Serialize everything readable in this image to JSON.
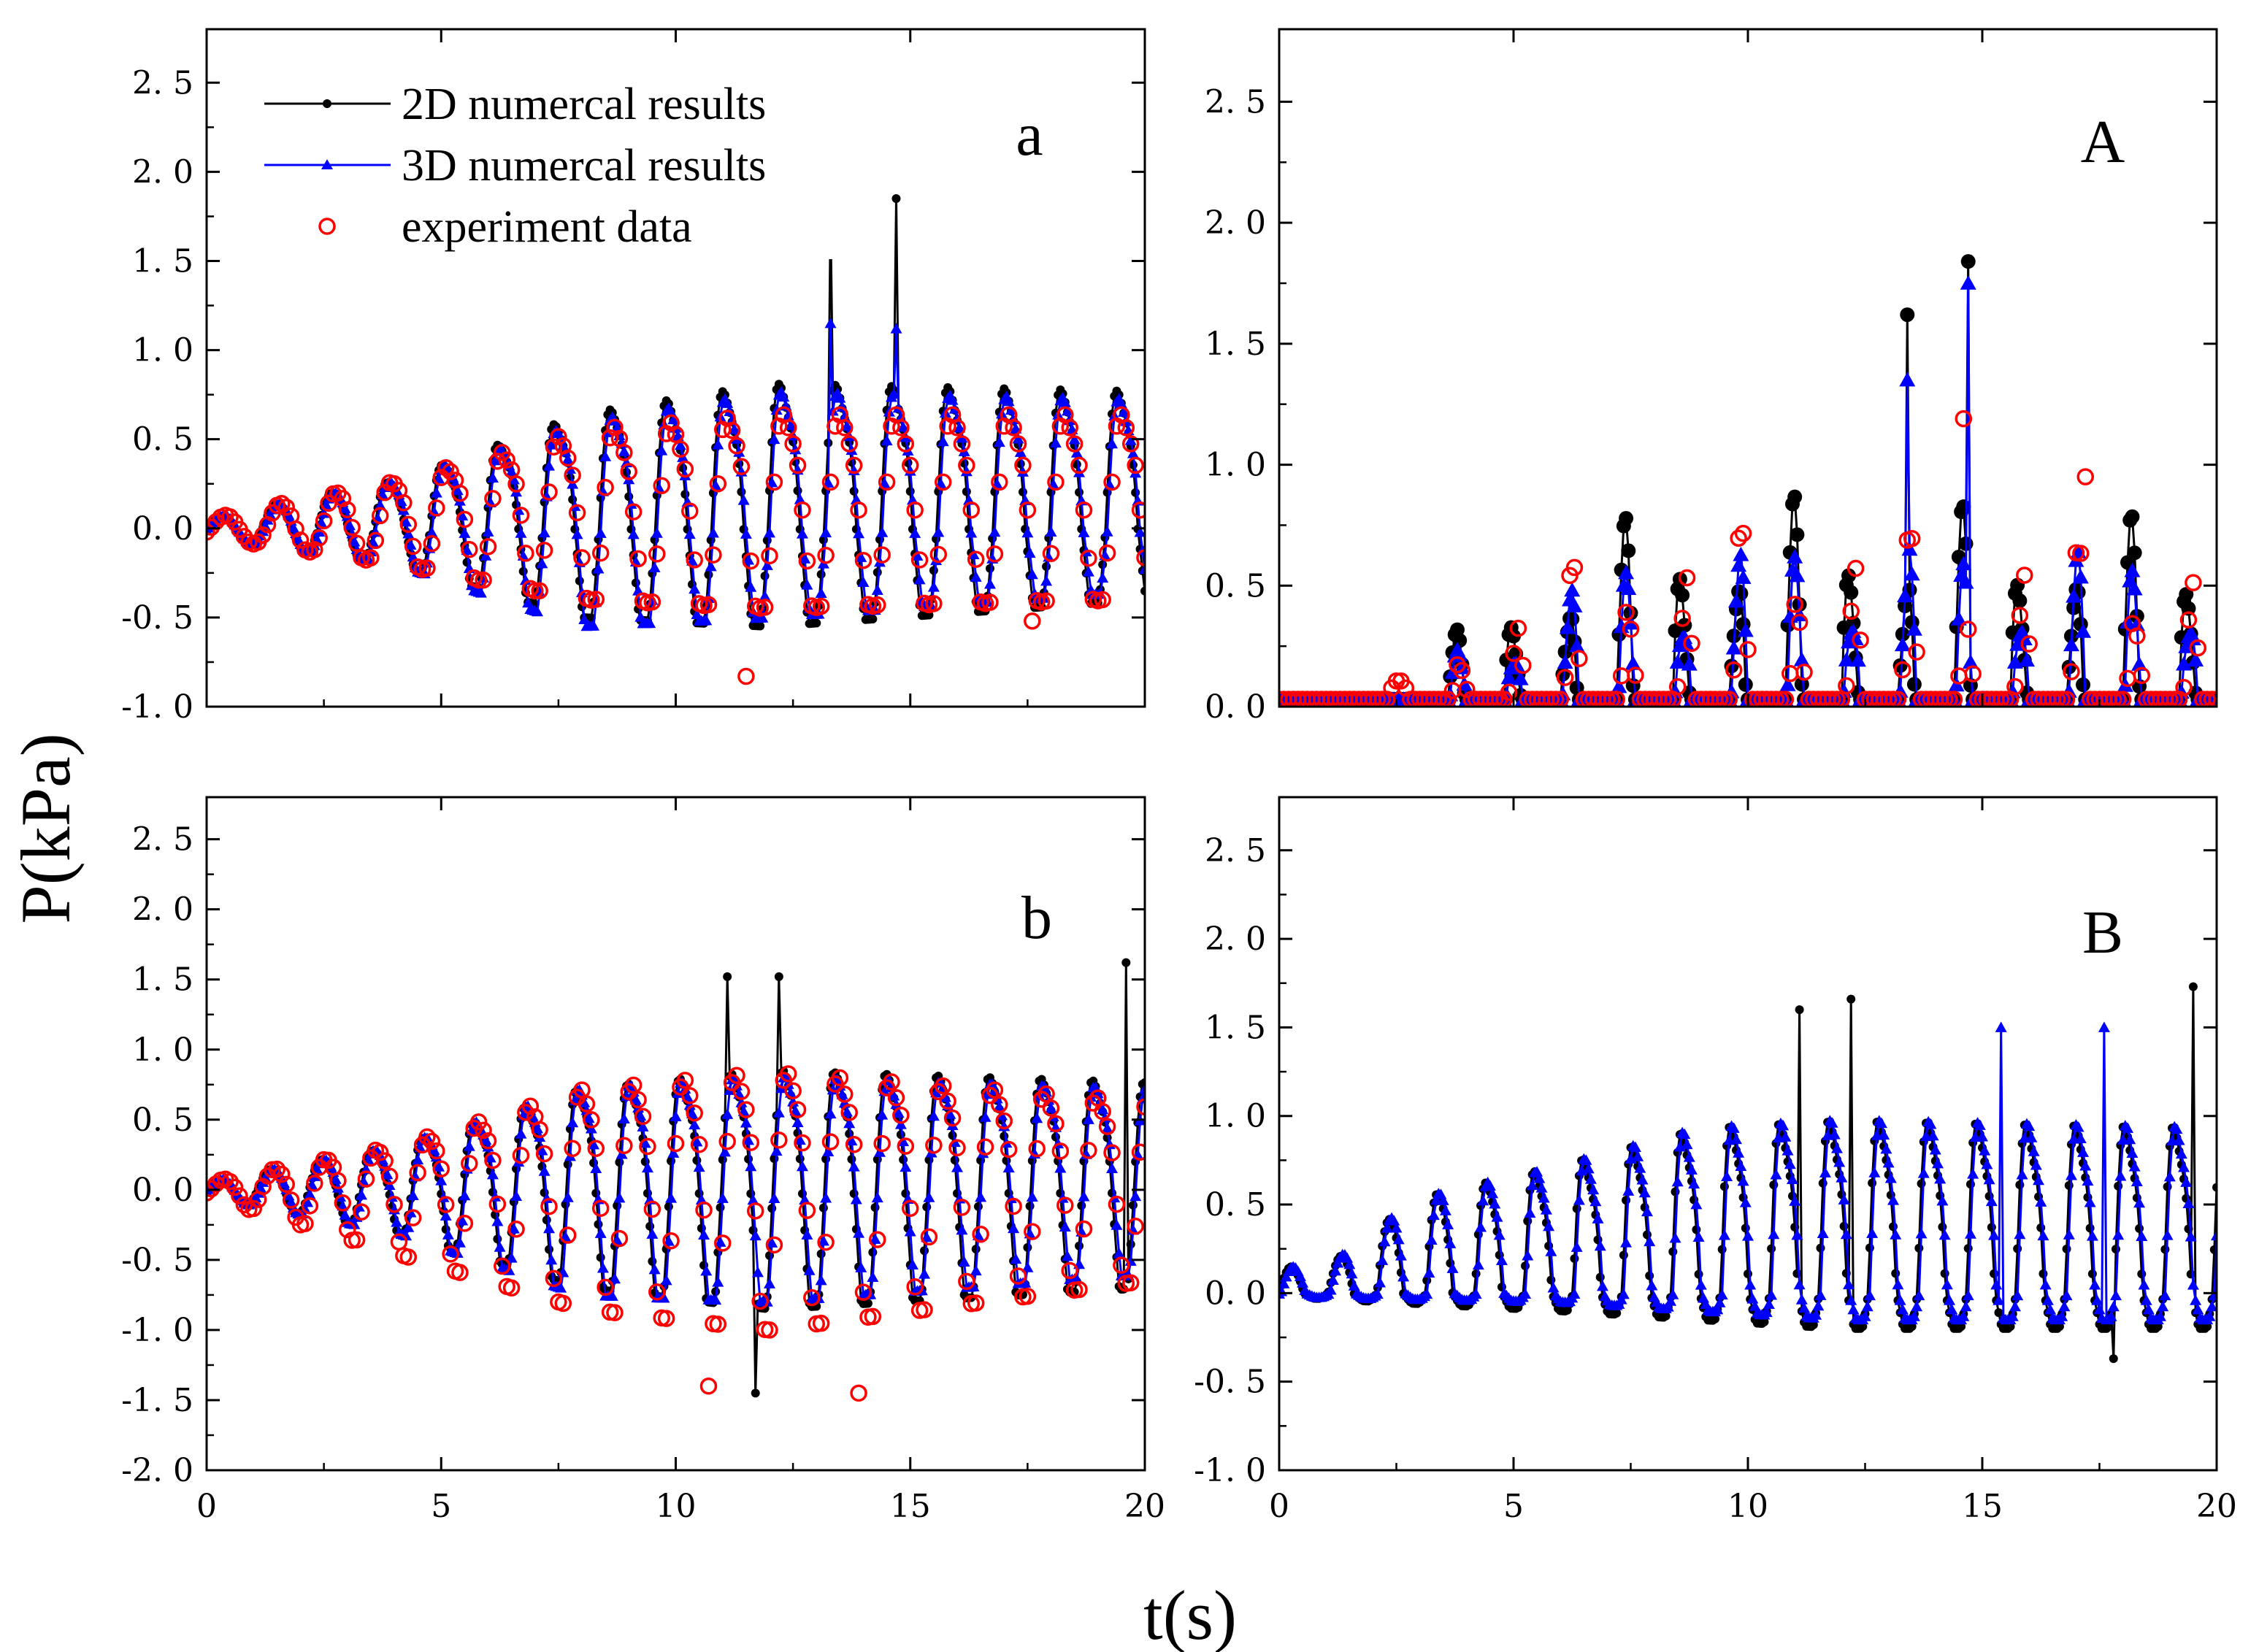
{
  "figure": {
    "ylabel": "P(kPa)",
    "xlabel": "t(s)",
    "colors": {
      "2D": "#000000",
      "3D": "#0000ff",
      "exp": "#ff0000"
    },
    "legend": {
      "placement": "top-left of panel a",
      "entries": [
        {
          "key": "2D",
          "label": "2D numercal results",
          "marker": "filled-circle"
        },
        {
          "key": "3D",
          "label": "3D numercal results",
          "marker": "triangle"
        },
        {
          "key": "exp",
          "label": "experiment data",
          "marker": "open-circle"
        }
      ]
    }
  },
  "chart_data": [
    {
      "id": "a",
      "label": "a",
      "type": "line",
      "xlim": [
        0,
        20
      ],
      "ylim": [
        -1.0,
        2.8
      ],
      "yticks": [
        "-1. 0",
        "-0. 5",
        "0. 0",
        "0. 5",
        "1. 0",
        "1. 5",
        "2. 0",
        "2. 5"
      ],
      "xticks": [],
      "period": 1.2,
      "series": {
        "2D": {
          "amplitude": [
            [
              0,
              0.05
            ],
            [
              4,
              0.3
            ],
            [
              8,
              0.75
            ],
            [
              12,
              0.95
            ],
            [
              20,
              0.9
            ]
          ],
          "trough": [
            [
              0,
              -0.05
            ],
            [
              4,
              -0.2
            ],
            [
              8,
              -0.5
            ],
            [
              12,
              -0.55
            ],
            [
              20,
              -0.4
            ]
          ]
        },
        "3D": {
          "amplitude": [
            [
              0,
              0.05
            ],
            [
              4,
              0.3
            ],
            [
              8,
              0.7
            ],
            [
              12,
              0.9
            ],
            [
              20,
              0.85
            ]
          ],
          "trough": [
            [
              0,
              -0.05
            ],
            [
              4,
              -0.2
            ],
            [
              8,
              -0.55
            ],
            [
              12,
              -0.5
            ],
            [
              20,
              -0.35
            ]
          ]
        },
        "exp": {
          "amplitude": [
            [
              0,
              0.05
            ],
            [
              4,
              0.3
            ],
            [
              8,
              0.65
            ],
            [
              12,
              0.75
            ],
            [
              20,
              0.75
            ]
          ],
          "trough": [
            [
              0,
              -0.05
            ],
            [
              4,
              -0.2
            ],
            [
              8,
              -0.4
            ],
            [
              12,
              -0.45
            ],
            [
              20,
              -0.4
            ]
          ]
        }
      },
      "spikes": [
        {
          "series": "2D",
          "t": 13.3,
          "p": 1.75
        },
        {
          "series": "2D",
          "t": 14.7,
          "p": 1.85
        },
        {
          "series": "3D",
          "t": 13.3,
          "p": 1.15
        },
        {
          "series": "3D",
          "t": 14.7,
          "p": 1.12
        },
        {
          "series": "exp",
          "t": 11.5,
          "p": -0.83
        },
        {
          "series": "exp",
          "t": 17.6,
          "p": -0.52
        }
      ]
    },
    {
      "id": "A",
      "label": "A",
      "type": "line",
      "xlim": [
        0,
        20
      ],
      "ylim": [
        0.0,
        2.8
      ],
      "yticks": [
        "0. 0",
        "0. 5",
        "1. 0",
        "1. 5",
        "2. 0",
        "2. 5"
      ],
      "xticks": [],
      "period": 1.2,
      "impact_start": 3.5,
      "baseline": 0.03,
      "series": {
        "2D": {
          "amplitude": [
            [
              3.5,
              0.25
            ],
            [
              7,
              0.75
            ],
            [
              11,
              0.85
            ],
            [
              20,
              0.75
            ]
          ]
        },
        "3D": {
          "amplitude": [
            [
              3.5,
              0.2
            ],
            [
              7,
              0.6
            ],
            [
              11,
              0.7
            ],
            [
              20,
              0.65
            ]
          ]
        },
        "exp": {
          "amplitude": [
            [
              2.5,
              0.1
            ],
            [
              7,
              0.7
            ],
            [
              11,
              0.8
            ],
            [
              20,
              0.65
            ]
          ]
        }
      },
      "spikes": [
        {
          "series": "2D",
          "t": 13.4,
          "p": 1.62
        },
        {
          "series": "2D",
          "t": 14.7,
          "p": 1.84
        },
        {
          "series": "3D",
          "t": 13.4,
          "p": 1.35
        },
        {
          "series": "3D",
          "t": 14.7,
          "p": 1.75
        },
        {
          "series": "exp",
          "t": 14.6,
          "p": 1.19
        },
        {
          "series": "exp",
          "t": 17.2,
          "p": 0.95
        }
      ]
    },
    {
      "id": "b",
      "label": "b",
      "type": "line",
      "xlim": [
        0,
        20
      ],
      "ylim": [
        -2.0,
        2.8
      ],
      "yticks": [
        "-2. 0",
        "-1. 5",
        "-1. 0",
        "-0. 5",
        "0. 0",
        "0. 5",
        "1. 0",
        "1. 5",
        "2. 0",
        "2. 5"
      ],
      "xticks": [
        "0",
        "5",
        "10",
        "15",
        "20"
      ],
      "period": 1.1,
      "series": {
        "2D": {
          "amplitude": [
            [
              0,
              0.05
            ],
            [
              4,
              0.35
            ],
            [
              8,
              0.85
            ],
            [
              12,
              1.0
            ],
            [
              20,
              0.9
            ]
          ],
          "trough": [
            [
              0,
              -0.05
            ],
            [
              4,
              -0.3
            ],
            [
              8,
              -0.7
            ],
            [
              12,
              -0.85
            ],
            [
              20,
              -0.7
            ]
          ]
        },
        "3D": {
          "amplitude": [
            [
              0,
              0.05
            ],
            [
              4,
              0.35
            ],
            [
              8,
              0.85
            ],
            [
              12,
              0.95
            ],
            [
              20,
              0.85
            ]
          ],
          "trough": [
            [
              0,
              -0.05
            ],
            [
              4,
              -0.3
            ],
            [
              8,
              -0.75
            ],
            [
              12,
              -0.8
            ],
            [
              20,
              -0.6
            ]
          ]
        },
        "exp": {
          "amplitude": [
            [
              0,
              0.05
            ],
            [
              4,
              0.35
            ],
            [
              8,
              0.85
            ],
            [
              12,
              1.0
            ],
            [
              20,
              0.75
            ]
          ],
          "trough": [
            [
              0,
              -0.05
            ],
            [
              4,
              -0.45
            ],
            [
              8,
              -0.85
            ],
            [
              12,
              -1.0
            ],
            [
              20,
              -0.65
            ]
          ]
        }
      },
      "spikes": [
        {
          "series": "2D",
          "t": 11.1,
          "p": 1.52
        },
        {
          "series": "2D",
          "t": 12.2,
          "p": 1.52
        },
        {
          "series": "2D",
          "t": 19.6,
          "p": 1.62
        },
        {
          "series": "2D",
          "t": 11.7,
          "p": -1.45
        },
        {
          "series": "exp",
          "t": 10.7,
          "p": -1.4
        },
        {
          "series": "exp",
          "t": 13.9,
          "p": -1.45
        }
      ]
    },
    {
      "id": "B",
      "label": "B",
      "type": "line",
      "xlim": [
        0,
        20
      ],
      "ylim": [
        -1.0,
        2.8
      ],
      "yticks": [
        "-1. 0",
        "-0. 5",
        "0. 0",
        "0. 5",
        "1. 0",
        "1. 5",
        "2. 0",
        "2. 5"
      ],
      "xticks": [
        "0",
        "5",
        "10",
        "15",
        "20"
      ],
      "period": 1.05,
      "series": {
        "2D": {
          "amplitude": [
            [
              1,
              0.15
            ],
            [
              3,
              0.6
            ],
            [
              6,
              0.85
            ],
            [
              9,
              1.1
            ],
            [
              12,
              1.15
            ],
            [
              20,
              1.1
            ]
          ],
          "trough": [
            [
              0,
              -0.02
            ],
            [
              6,
              -0.1
            ],
            [
              12,
              -0.2
            ],
            [
              20,
              -0.2
            ]
          ]
        },
        "3D": {
          "amplitude": [
            [
              1,
              0.15
            ],
            [
              3,
              0.6
            ],
            [
              6,
              0.85
            ],
            [
              9,
              1.1
            ],
            [
              12,
              1.15
            ],
            [
              20,
              1.1
            ]
          ],
          "trough": [
            [
              0,
              -0.02
            ],
            [
              6,
              -0.05
            ],
            [
              12,
              -0.15
            ],
            [
              20,
              -0.15
            ]
          ]
        }
      },
      "spikes": [
        {
          "series": "2D",
          "t": 11.1,
          "p": 1.6
        },
        {
          "series": "2D",
          "t": 12.2,
          "p": 1.66
        },
        {
          "series": "2D",
          "t": 19.5,
          "p": 1.73
        },
        {
          "series": "3D",
          "t": 15.4,
          "p": 1.5
        },
        {
          "series": "3D",
          "t": 17.6,
          "p": 1.5
        },
        {
          "series": "2D",
          "t": 17.8,
          "p": -0.37
        }
      ]
    }
  ]
}
